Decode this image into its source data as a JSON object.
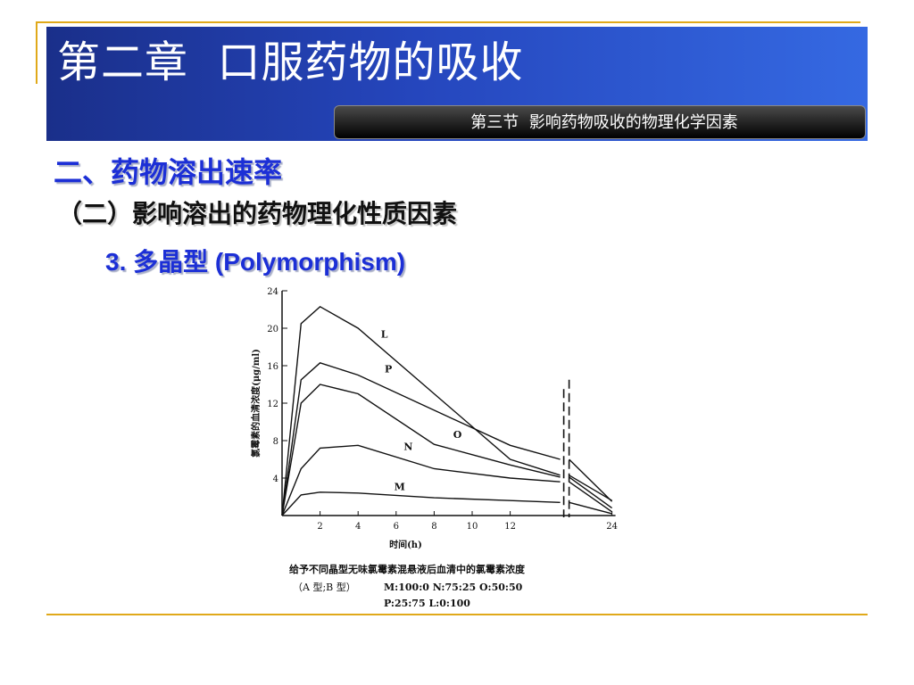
{
  "slide": {
    "title": "第二章  口服药物的吸收",
    "section_label": "第三节  影响药物吸收的物理化学因素",
    "heading": "二、药物溶出速率",
    "subheading": "（二）影响溶出的药物理化性质因素",
    "topic": "3. 多晶型 (Polymorphism)"
  },
  "colors": {
    "banner": "#2546bd",
    "accent_blue": "#1c2fd6",
    "rule_gold": "#e0a91a"
  },
  "chart_data": {
    "type": "line",
    "ylabel": "氯霉素的血清浓度(μg/ml)",
    "xlabel": "时间(h)",
    "y_ticks": [
      4,
      8,
      12,
      16,
      20,
      24
    ],
    "x_ticks": [
      2,
      4,
      6,
      8,
      10,
      12,
      24
    ],
    "ylim": [
      0,
      24
    ],
    "caption_line1": "给予不同晶型无味氯霉素混悬液后血清中的氯霉素浓度",
    "caption_line2_label": "（A 型;B 型）",
    "caption_line2_values": "M:100:0   N:75:25   O:50:50",
    "caption_line3": "P:25:75   L:0:100",
    "series": [
      {
        "name": "L",
        "points": [
          [
            0,
            0
          ],
          [
            1,
            20.5
          ],
          [
            2,
            22.3
          ],
          [
            4,
            20.0
          ],
          [
            12,
            6.0
          ],
          [
            14,
            4.3
          ],
          [
            24,
            1.6
          ]
        ]
      },
      {
        "name": "P",
        "points": [
          [
            0,
            0
          ],
          [
            1,
            14.5
          ],
          [
            2,
            16.3
          ],
          [
            4,
            15.0
          ],
          [
            12,
            7.5
          ],
          [
            14,
            6.0
          ],
          [
            24,
            1.5
          ]
        ]
      },
      {
        "name": "O",
        "points": [
          [
            0,
            0
          ],
          [
            1,
            12.0
          ],
          [
            2,
            14.0
          ],
          [
            4,
            13.0
          ],
          [
            8,
            7.6
          ],
          [
            12,
            5.4
          ],
          [
            14,
            4.1
          ],
          [
            24,
            0.8
          ]
        ]
      },
      {
        "name": "N",
        "points": [
          [
            0,
            0
          ],
          [
            1,
            5.0
          ],
          [
            2,
            7.2
          ],
          [
            4,
            7.5
          ],
          [
            8,
            5.0
          ],
          [
            12,
            4.0
          ],
          [
            14,
            3.6
          ],
          [
            24,
            0.4
          ]
        ]
      },
      {
        "name": "M",
        "points": [
          [
            0,
            0
          ],
          [
            1,
            2.2
          ],
          [
            2,
            2.5
          ],
          [
            4,
            2.4
          ],
          [
            8,
            1.9
          ],
          [
            12,
            1.6
          ],
          [
            14,
            1.4
          ],
          [
            24,
            0.2
          ]
        ]
      }
    ],
    "series_labels_positions": {
      "L": [
        5.2,
        19.0
      ],
      "P": [
        5.4,
        15.3
      ],
      "O": [
        9.0,
        8.3
      ],
      "N": [
        6.4,
        7.0
      ],
      "M": [
        5.9,
        2.7
      ]
    },
    "axis_break": true
  }
}
